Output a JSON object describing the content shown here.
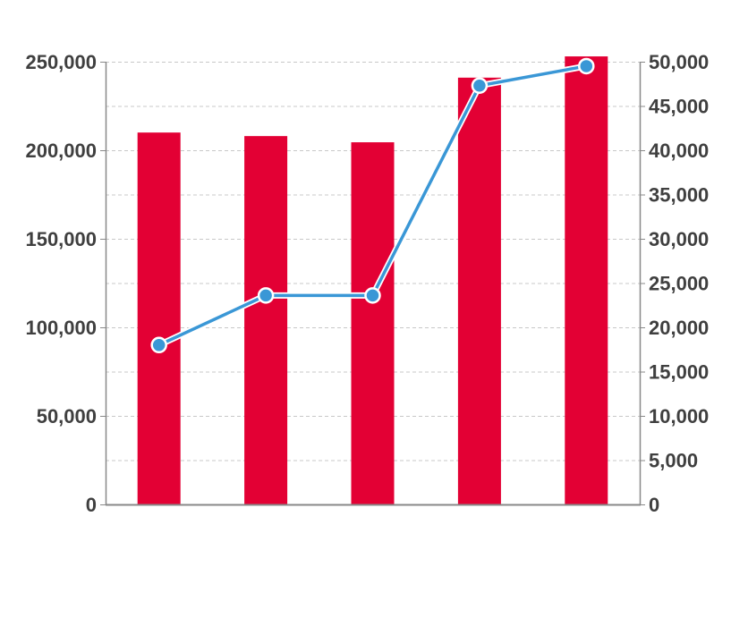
{
  "chart_data": {
    "type": "bar+line",
    "categories": [
      "",
      "",
      "",
      "",
      ""
    ],
    "series": [
      {
        "type": "bar",
        "axis": "left",
        "values": [
          210000,
          208000,
          204500,
          241000,
          253000
        ]
      },
      {
        "type": "line",
        "axis": "right",
        "values": [
          18000,
          23600,
          23600,
          47300,
          49500
        ]
      }
    ],
    "left_axis": {
      "ylim": [
        0,
        250000
      ],
      "ticks": [
        0,
        50000,
        100000,
        150000,
        200000,
        250000
      ],
      "tick_labels": [
        "0",
        "50,000",
        "100,000",
        "150,000",
        "200,000",
        "250,000"
      ]
    },
    "right_axis": {
      "ylim": [
        0,
        50000
      ],
      "ticks": [
        0,
        5000,
        10000,
        15000,
        20000,
        25000,
        30000,
        35000,
        40000,
        45000,
        50000
      ],
      "tick_labels": [
        "0",
        "5,000",
        "10,000",
        "15,000",
        "20,000",
        "25,000",
        "30,000",
        "35,000",
        "40,000",
        "45,000",
        "50,000"
      ]
    },
    "grid": true,
    "colors": {
      "bar": "#e30034",
      "line": "#3a97d6",
      "marker_fill": "#3a97d6",
      "marker_stroke": "#ffffff",
      "grid": "#c8c8c8",
      "axis": "#888888",
      "text": "#3f3f3f"
    }
  }
}
